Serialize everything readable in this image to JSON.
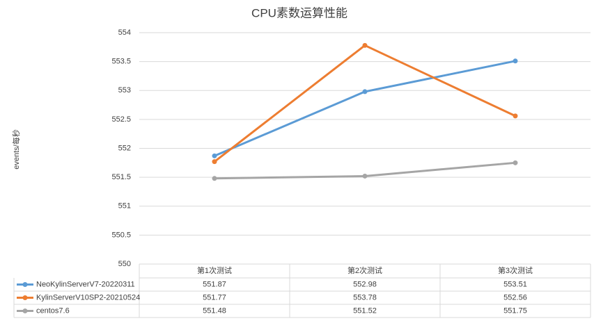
{
  "chart_data": {
    "type": "line",
    "title": "CPU素数运算性能",
    "y_label": "events/每秒",
    "categories": [
      "第1次测试",
      "第2次测试",
      "第3次测试"
    ],
    "series": [
      {
        "name": "NeoKylinServerV7-20220311",
        "color": "#5b9bd5",
        "values": [
          551.87,
          552.98,
          553.51
        ]
      },
      {
        "name": "KylinServerV10SP2-20210524",
        "color": "#ed7d31",
        "values": [
          551.77,
          553.78,
          552.56
        ]
      },
      {
        "name": "centos7.6",
        "color": "#a5a5a5",
        "values": [
          551.48,
          551.52,
          551.75
        ]
      }
    ],
    "ylim": [
      550,
      554
    ],
    "yticks": [
      550,
      550.5,
      551,
      551.5,
      552,
      552.5,
      553,
      553.5,
      554
    ],
    "grid": true,
    "data_table": true
  }
}
